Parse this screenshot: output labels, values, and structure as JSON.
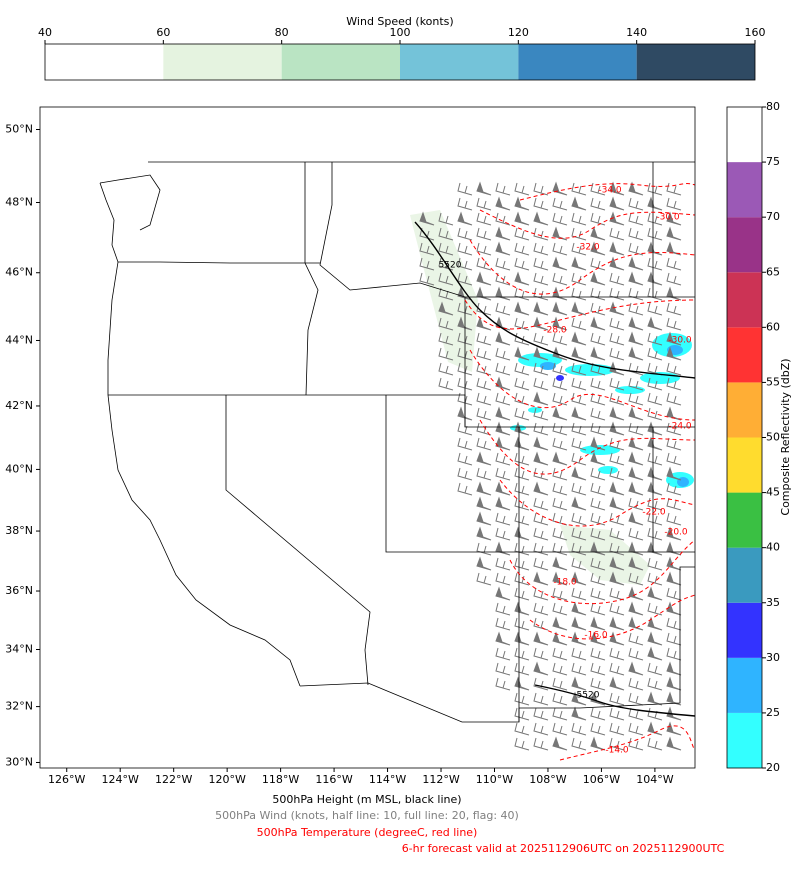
{
  "wind_colorbar": {
    "title": "Wind Speed (konts)",
    "lim": [
      40,
      160
    ],
    "ticks": [
      40,
      60,
      80,
      100,
      120,
      140,
      160
    ],
    "colors": [
      "#ffffff",
      "#e5f3e0",
      "#bae4c3",
      "#74c3d9",
      "#3a87c0",
      "#2f4a63"
    ]
  },
  "reflectivity_colorbar": {
    "label": "Composite Reflectivity (dbZ)",
    "lim": [
      20,
      80
    ],
    "ticks": [
      20,
      25,
      30,
      35,
      40,
      45,
      50,
      55,
      60,
      65,
      70,
      75,
      80
    ],
    "colors": [
      "#33ffff",
      "#2fb4ff",
      "#3333ff",
      "#3a9abf",
      "#3ac043",
      "#ffdc2e",
      "#ffae35",
      "#ff3333",
      "#cc3355",
      "#993388",
      "#9b59b6",
      "#ffffff"
    ]
  },
  "map": {
    "xlim": [
      -127,
      -102.5
    ],
    "ylim": [
      29.8,
      50.6
    ],
    "xticks": [
      {
        "value": -126,
        "label": "126°W"
      },
      {
        "value": -124,
        "label": "124°W"
      },
      {
        "value": -122,
        "label": "122°W"
      },
      {
        "value": -120,
        "label": "120°W"
      },
      {
        "value": -118,
        "label": "118°W"
      },
      {
        "value": -116,
        "label": "116°W"
      },
      {
        "value": -114,
        "label": "114°W"
      },
      {
        "value": -112,
        "label": "112°W"
      },
      {
        "value": -110,
        "label": "110°W"
      },
      {
        "value": -108,
        "label": "108°W"
      },
      {
        "value": -106,
        "label": "106°W"
      },
      {
        "value": -104,
        "label": "104°W"
      }
    ],
    "yticks": [
      {
        "value": 30,
        "label": "30°N"
      },
      {
        "value": 32,
        "label": "32°N"
      },
      {
        "value": 34,
        "label": "34°N"
      },
      {
        "value": 36,
        "label": "36°N"
      },
      {
        "value": 38,
        "label": "38°N"
      },
      {
        "value": 40,
        "label": "40°N"
      },
      {
        "value": 42,
        "label": "42°N"
      },
      {
        "value": 44,
        "label": "44°N"
      },
      {
        "value": 46,
        "label": "46°N"
      },
      {
        "value": 48,
        "label": "48°N"
      },
      {
        "value": 50,
        "label": "50°N"
      }
    ],
    "contour_labels": [
      "-34.0",
      "-30.0",
      "-32.0",
      "-28.0",
      "-30.0",
      "-24.0",
      "-22.0",
      "-20.0",
      "-18.0",
      "-16.0",
      "-14.0",
      "5520",
      "5520"
    ]
  },
  "captions": [
    {
      "text": "500hPa Height (m MSL, black line)",
      "color": "#000000"
    },
    {
      "text": "500hPa Wind (knots, half line: 10, full line: 20, flag: 40)",
      "color": "#808080"
    },
    {
      "text": "500hPa Temperature (degreeC, red line)",
      "color": "#ff0000"
    },
    {
      "text": "6-hr forecast valid at 2025112906UTC on 2025112900UTC",
      "color": "#ff0000"
    }
  ]
}
